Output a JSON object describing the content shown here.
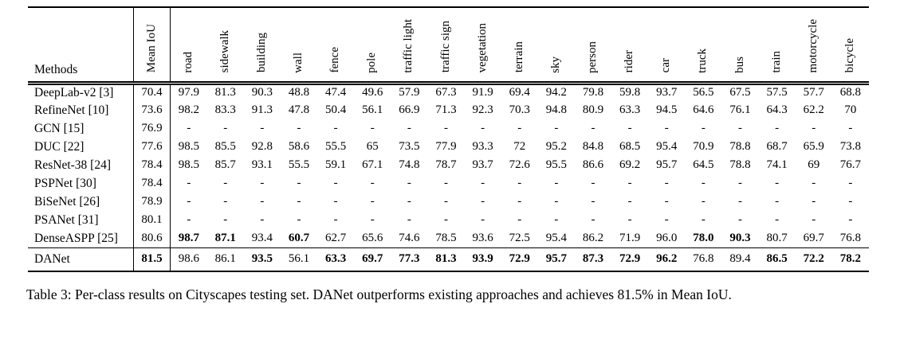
{
  "page": {
    "background": "#ffffff",
    "text_color": "#000000",
    "rule_color": "#000000"
  },
  "table": {
    "header": {
      "methods_label": "Methods",
      "rotated_columns": [
        "Mean IoU",
        "road",
        "sidewalk",
        "building",
        "wall",
        "fence",
        "pole",
        "traffic light",
        "traffic sign",
        "vegetation",
        "terrain",
        "sky",
        "person",
        "rider",
        "car",
        "truck",
        "bus",
        "train",
        "motorcycle",
        "bicycle"
      ]
    },
    "rows": [
      {
        "method": "DeepLab-v2 [3]",
        "values": [
          "70.4",
          "97.9",
          "81.3",
          "90.3",
          "48.8",
          "47.4",
          "49.6",
          "57.9",
          "67.3",
          "91.9",
          "69.4",
          "94.2",
          "79.8",
          "59.8",
          "93.7",
          "56.5",
          "67.5",
          "57.5",
          "57.7",
          "68.8"
        ],
        "bold": [],
        "rule_above": false
      },
      {
        "method": "RefineNet [10]",
        "values": [
          "73.6",
          "98.2",
          "83.3",
          "91.3",
          "47.8",
          "50.4",
          "56.1",
          "66.9",
          "71.3",
          "92.3",
          "70.3",
          "94.8",
          "80.9",
          "63.3",
          "94.5",
          "64.6",
          "76.1",
          "64.3",
          "62.2",
          "70"
        ],
        "bold": [],
        "rule_above": false
      },
      {
        "method": "GCN [15]",
        "values": [
          "76.9",
          "-",
          "-",
          "-",
          "-",
          "-",
          "-",
          "-",
          "-",
          "-",
          "-",
          "-",
          "-",
          "-",
          "-",
          "-",
          "-",
          "-",
          "-",
          "-"
        ],
        "bold": [],
        "rule_above": false
      },
      {
        "method": "DUC [22]",
        "values": [
          "77.6",
          "98.5",
          "85.5",
          "92.8",
          "58.6",
          "55.5",
          "65",
          "73.5",
          "77.9",
          "93.3",
          "72",
          "95.2",
          "84.8",
          "68.5",
          "95.4",
          "70.9",
          "78.8",
          "68.7",
          "65.9",
          "73.8"
        ],
        "bold": [],
        "rule_above": false
      },
      {
        "method": "ResNet-38 [24]",
        "values": [
          "78.4",
          "98.5",
          "85.7",
          "93.1",
          "55.5",
          "59.1",
          "67.1",
          "74.8",
          "78.7",
          "93.7",
          "72.6",
          "95.5",
          "86.6",
          "69.2",
          "95.7",
          "64.5",
          "78.8",
          "74.1",
          "69",
          "76.7"
        ],
        "bold": [],
        "rule_above": false
      },
      {
        "method": "PSPNet [30]",
        "values": [
          "78.4",
          "-",
          "-",
          "-",
          "-",
          "-",
          "-",
          "-",
          "-",
          "-",
          "-",
          "-",
          "-",
          "-",
          "-",
          "-",
          "-",
          "-",
          "-",
          "-"
        ],
        "bold": [],
        "rule_above": false
      },
      {
        "method": "BiSeNet [26]",
        "values": [
          "78.9",
          "-",
          "-",
          "-",
          "-",
          "-",
          "-",
          "-",
          "-",
          "-",
          "-",
          "-",
          "-",
          "-",
          "-",
          "-",
          "-",
          "-",
          "-",
          "-"
        ],
        "bold": [],
        "rule_above": false
      },
      {
        "method": "PSANet [31]",
        "values": [
          "80.1",
          "-",
          "-",
          "-",
          "-",
          "-",
          "-",
          "-",
          "-",
          "-",
          "-",
          "-",
          "-",
          "-",
          "-",
          "-",
          "-",
          "-",
          "-",
          "-"
        ],
        "bold": [],
        "rule_above": false
      },
      {
        "method": "DenseASPP [25]",
        "values": [
          "80.6",
          "98.7",
          "87.1",
          "93.4",
          "60.7",
          "62.7",
          "65.6",
          "74.6",
          "78.5",
          "93.6",
          "72.5",
          "95.4",
          "86.2",
          "71.9",
          "96.0",
          "78.0",
          "90.3",
          "80.7",
          "69.7",
          "76.8"
        ],
        "bold": [
          1,
          2,
          4,
          15,
          16
        ],
        "rule_above": false
      },
      {
        "method": "DANet",
        "values": [
          "81.5",
          "98.6",
          "86.1",
          "93.5",
          "56.1",
          "63.3",
          "69.7",
          "77.3",
          "81.3",
          "93.9",
          "72.9",
          "95.7",
          "87.3",
          "72.9",
          "96.2",
          "76.8",
          "89.4",
          "86.5",
          "72.2",
          "78.2"
        ],
        "bold": [
          0,
          3,
          5,
          6,
          7,
          8,
          9,
          10,
          11,
          12,
          13,
          14,
          17,
          18,
          19
        ],
        "rule_above": true
      }
    ]
  },
  "caption": "Table 3: Per-class results on Cityscapes testing set. DANet outperforms existing approaches and achieves 81.5% in Mean IoU."
}
